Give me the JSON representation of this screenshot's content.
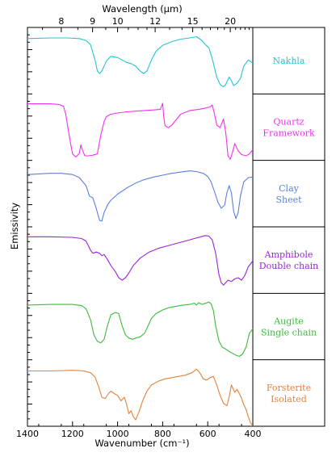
{
  "chart_data": {
    "type": "line",
    "title": "",
    "xlabel": "Wavenumber (cm⁻¹)",
    "ylabel": "Emissivity",
    "top_xlabel": "Wavelength (μm)",
    "xlim": [
      1400,
      400
    ],
    "x_ticks": [
      1400,
      1200,
      1000,
      800,
      600,
      400
    ],
    "top_ticks": [
      8,
      9,
      10,
      12,
      15,
      20
    ],
    "y_ticks": "unlabeled",
    "grid": false,
    "layout": "stacked panels with offset spectra",
    "series": [
      {
        "label_lines": [
          "Nakhla"
        ],
        "color": "#22c4d4",
        "x": [
          1400,
          1300,
          1220,
          1170,
          1140,
          1120,
          1100,
          1090,
          1080,
          1070,
          1050,
          1030,
          1000,
          980,
          960,
          940,
          920,
          900,
          885,
          870,
          850,
          830,
          800,
          760,
          720,
          680,
          650,
          630,
          610,
          595,
          580,
          560,
          545,
          530,
          520,
          505,
          495,
          485,
          470,
          455,
          440,
          420,
          400
        ],
        "y": [
          0.95,
          0.96,
          0.96,
          0.95,
          0.92,
          0.85,
          0.6,
          0.42,
          0.38,
          0.42,
          0.58,
          0.66,
          0.64,
          0.6,
          0.56,
          0.54,
          0.5,
          0.42,
          0.38,
          0.42,
          0.6,
          0.74,
          0.84,
          0.9,
          0.94,
          0.96,
          0.98,
          0.93,
          0.85,
          0.8,
          0.62,
          0.32,
          0.2,
          0.16,
          0.2,
          0.32,
          0.26,
          0.18,
          0.22,
          0.3,
          0.5,
          0.6,
          0.55
        ]
      },
      {
        "label_lines": [
          "Quartz",
          "Framework"
        ],
        "color": "#f230f2",
        "x": [
          1400,
          1300,
          1260,
          1240,
          1230,
          1210,
          1200,
          1185,
          1170,
          1163,
          1155,
          1145,
          1130,
          1110,
          1090,
          1075,
          1060,
          1050,
          1030,
          1000,
          960,
          920,
          880,
          840,
          810,
          800,
          795,
          790,
          785,
          775,
          760,
          720,
          680,
          640,
          610,
          590,
          580,
          570,
          560,
          545,
          530,
          520,
          510,
          500,
          490,
          480,
          465,
          450,
          430,
          415,
          400
        ],
        "y": [
          0.97,
          0.97,
          0.96,
          0.93,
          0.8,
          0.35,
          0.15,
          0.1,
          0.16,
          0.3,
          0.2,
          0.12,
          0.12,
          0.13,
          0.15,
          0.45,
          0.68,
          0.76,
          0.8,
          0.82,
          0.84,
          0.85,
          0.86,
          0.87,
          0.88,
          0.98,
          0.75,
          0.62,
          0.6,
          0.58,
          0.62,
          0.8,
          0.86,
          0.88,
          0.9,
          0.92,
          0.95,
          0.8,
          0.62,
          0.58,
          0.72,
          0.5,
          0.12,
          0.06,
          0.18,
          0.32,
          0.2,
          0.14,
          0.12,
          0.15,
          0.22
        ]
      },
      {
        "label_lines": [
          "Clay",
          "Sheet"
        ],
        "color": "#5a80dc",
        "x": [
          1400,
          1300,
          1250,
          1200,
          1170,
          1140,
          1125,
          1110,
          1095,
          1080,
          1070,
          1060,
          1045,
          1030,
          1000,
          960,
          920,
          880,
          840,
          800,
          760,
          720,
          680,
          650,
          620,
          600,
          585,
          570,
          555,
          540,
          525,
          515,
          505,
          495,
          485,
          475,
          465,
          455,
          440,
          420,
          400
        ],
        "y": [
          0.9,
          0.92,
          0.92,
          0.9,
          0.85,
          0.72,
          0.55,
          0.52,
          0.35,
          0.15,
          0.14,
          0.28,
          0.4,
          0.48,
          0.58,
          0.68,
          0.76,
          0.82,
          0.86,
          0.89,
          0.92,
          0.94,
          0.96,
          0.95,
          0.92,
          0.87,
          0.78,
          0.62,
          0.45,
          0.35,
          0.4,
          0.6,
          0.72,
          0.6,
          0.3,
          0.18,
          0.28,
          0.55,
          0.78,
          0.85,
          0.86
        ]
      },
      {
        "label_lines": [
          "Amphibole",
          "Double chain"
        ],
        "color": "#9a24d8",
        "x": [
          1400,
          1300,
          1200,
          1160,
          1140,
          1120,
          1110,
          1095,
          1080,
          1070,
          1060,
          1045,
          1030,
          1010,
          995,
          980,
          965,
          950,
          930,
          900,
          860,
          820,
          780,
          740,
          700,
          660,
          630,
          610,
          595,
          580,
          565,
          550,
          540,
          530,
          520,
          510,
          495,
          480,
          465,
          450,
          435,
          420,
          405,
          400
        ],
        "y": [
          0.97,
          0.97,
          0.96,
          0.94,
          0.9,
          0.75,
          0.7,
          0.72,
          0.7,
          0.66,
          0.68,
          0.6,
          0.5,
          0.4,
          0.3,
          0.26,
          0.3,
          0.38,
          0.5,
          0.62,
          0.72,
          0.78,
          0.82,
          0.86,
          0.9,
          0.94,
          0.97,
          0.99,
          0.98,
          0.92,
          0.7,
          0.35,
          0.22,
          0.18,
          0.22,
          0.26,
          0.24,
          0.28,
          0.3,
          0.26,
          0.34,
          0.48,
          0.55,
          0.58
        ]
      },
      {
        "label_lines": [
          "Augite",
          "Single chain"
        ],
        "color": "#3cbb3c",
        "x": [
          1400,
          1300,
          1200,
          1160,
          1140,
          1120,
          1105,
          1090,
          1075,
          1060,
          1045,
          1030,
          1010,
          995,
          980,
          965,
          950,
          935,
          920,
          900,
          880,
          865,
          850,
          830,
          800,
          770,
          740,
          710,
          680,
          660,
          650,
          640,
          625,
          610,
          595,
          585,
          575,
          565,
          550,
          535,
          520,
          505,
          490,
          475,
          460,
          445,
          430,
          415,
          400
        ],
        "y": [
          0.94,
          0.95,
          0.95,
          0.93,
          0.88,
          0.7,
          0.45,
          0.35,
          0.32,
          0.38,
          0.6,
          0.78,
          0.82,
          0.8,
          0.6,
          0.45,
          0.4,
          0.38,
          0.4,
          0.42,
          0.48,
          0.6,
          0.72,
          0.8,
          0.86,
          0.9,
          0.92,
          0.94,
          0.95,
          0.97,
          0.94,
          0.98,
          0.95,
          0.97,
          0.99,
          0.96,
          0.85,
          0.6,
          0.35,
          0.25,
          0.22,
          0.18,
          0.15,
          0.12,
          0.1,
          0.14,
          0.25,
          0.48,
          0.55
        ]
      },
      {
        "label_lines": [
          "Forsterite",
          "Isolated"
        ],
        "color": "#e2823c",
        "x": [
          1400,
          1300,
          1200,
          1150,
          1120,
          1100,
          1085,
          1070,
          1055,
          1040,
          1030,
          1015,
          1000,
          985,
          970,
          960,
          950,
          940,
          930,
          920,
          905,
          890,
          870,
          850,
          820,
          790,
          760,
          730,
          700,
          670,
          650,
          635,
          620,
          605,
          590,
          575,
          560,
          545,
          530,
          515,
          505,
          495,
          480,
          470,
          460,
          450,
          440,
          430,
          420,
          410,
          400
        ],
        "y": [
          0.95,
          0.95,
          0.96,
          0.95,
          0.92,
          0.85,
          0.7,
          0.52,
          0.5,
          0.58,
          0.62,
          0.58,
          0.55,
          0.46,
          0.52,
          0.4,
          0.25,
          0.3,
          0.2,
          0.15,
          0.28,
          0.45,
          0.62,
          0.72,
          0.78,
          0.82,
          0.84,
          0.86,
          0.88,
          0.92,
          0.98,
          0.92,
          0.82,
          0.8,
          0.84,
          0.86,
          0.72,
          0.55,
          0.42,
          0.38,
          0.52,
          0.72,
          0.6,
          0.65,
          0.58,
          0.5,
          0.4,
          0.32,
          0.2,
          0.1,
          0.05
        ]
      }
    ]
  }
}
